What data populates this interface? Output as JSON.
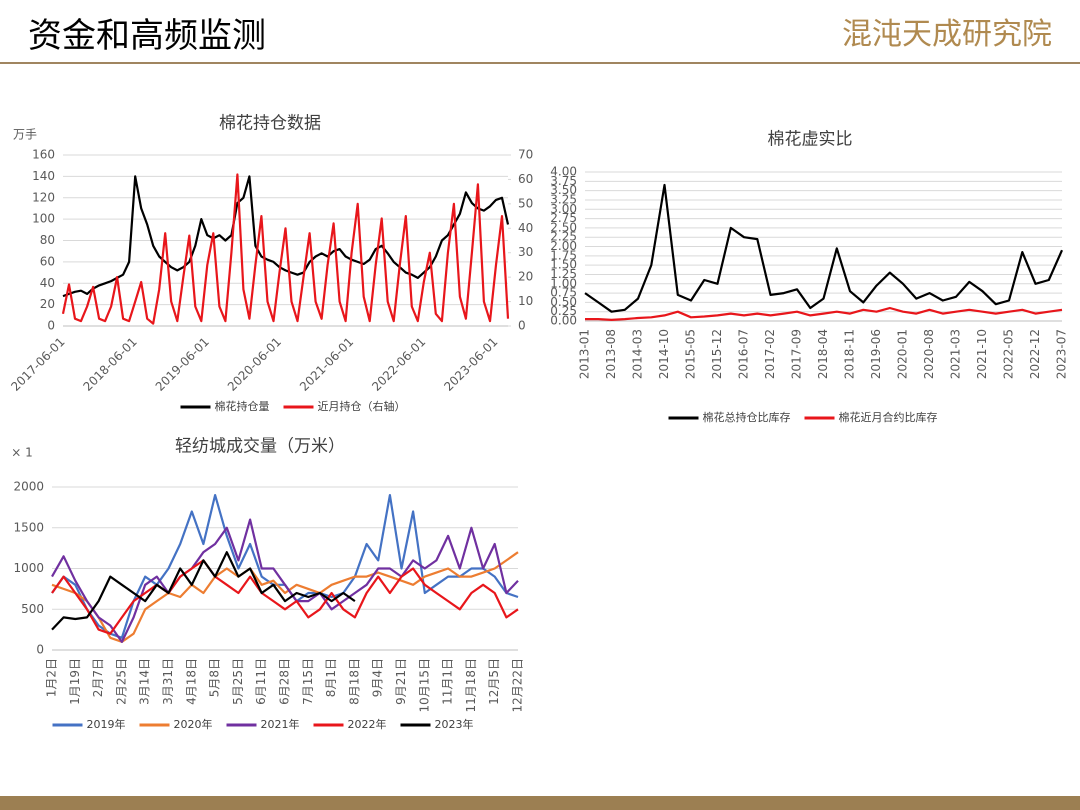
{
  "header": {
    "title": "资金和高频监测",
    "logo": "混沌天成研究院"
  },
  "chart_data": [
    {
      "type": "line",
      "title": "棉花持仓数据",
      "y_label": "万手",
      "categories": [
        "2017-06-01",
        null,
        null,
        null,
        null,
        null,
        null,
        null,
        null,
        null,
        null,
        null,
        "2018-06-01",
        null,
        null,
        null,
        null,
        null,
        null,
        null,
        null,
        null,
        null,
        null,
        "2019-06-01",
        null,
        null,
        null,
        null,
        null,
        null,
        null,
        null,
        null,
        null,
        null,
        "2020-06-01",
        null,
        null,
        null,
        null,
        null,
        null,
        null,
        null,
        null,
        null,
        null,
        "2021-06-01",
        null,
        null,
        null,
        null,
        null,
        null,
        null,
        null,
        null,
        null,
        null,
        "2022-06-01",
        null,
        null,
        null,
        null,
        null,
        null,
        null,
        null,
        null,
        null,
        null,
        "2023-06-01",
        null,
        null
      ],
      "series": [
        {
          "name": "棉花持仓量",
          "color": "#000000",
          "values": [
            28,
            30,
            32,
            33,
            30,
            35,
            38,
            40,
            42,
            45,
            48,
            60,
            140,
            110,
            95,
            75,
            65,
            60,
            55,
            52,
            55,
            60,
            75,
            100,
            85,
            82,
            85,
            80,
            85,
            115,
            120,
            140,
            75,
            65,
            62,
            60,
            55,
            52,
            50,
            48,
            50,
            60,
            65,
            68,
            65,
            70,
            72,
            65,
            62,
            60,
            58,
            62,
            72,
            75,
            68,
            60,
            55,
            50,
            48,
            45,
            50,
            55,
            65,
            80,
            85,
            95,
            105,
            125,
            115,
            110,
            108,
            112,
            118,
            120,
            95
          ]
        },
        {
          "name": "近月持仓（右轴）",
          "color": "#e8161b",
          "axis": "y2",
          "values": [
            5,
            17,
            3,
            2,
            8,
            16,
            3,
            2,
            8,
            20,
            3,
            2,
            10,
            18,
            3,
            1,
            15,
            38,
            10,
            2,
            20,
            37,
            8,
            2,
            25,
            38,
            8,
            2,
            30,
            62,
            15,
            3,
            25,
            45,
            10,
            2,
            22,
            40,
            10,
            2,
            20,
            38,
            10,
            3,
            25,
            42,
            10,
            2,
            30,
            50,
            12,
            2,
            25,
            44,
            10,
            2,
            25,
            45,
            8,
            2,
            18,
            30,
            5,
            2,
            30,
            50,
            12,
            3,
            30,
            58,
            10,
            2,
            25,
            45,
            3
          ]
        }
      ],
      "ylim": [
        0,
        160
      ],
      "yticks": [
        0,
        20,
        40,
        60,
        80,
        100,
        120,
        140,
        160
      ],
      "y2lim": [
        0,
        70
      ],
      "y2ticks": [
        0,
        10,
        20,
        30,
        40,
        50,
        60,
        70
      ],
      "grid": true,
      "legend": "bottom"
    },
    {
      "type": "line",
      "title": "棉花虚实比",
      "categories": [
        "2013-01",
        null,
        "2013-08",
        null,
        "2014-03",
        null,
        "2014-10",
        null,
        "2015-05",
        null,
        "2015-12",
        null,
        "2016-07",
        null,
        "2017-02",
        null,
        "2017-09",
        null,
        "2018-04",
        null,
        "2018-11",
        null,
        "2019-06",
        null,
        "2020-01",
        null,
        "2020-08",
        null,
        "2021-03",
        null,
        "2021-10",
        null,
        "2022-05",
        null,
        "2022-12",
        null,
        "2023-07"
      ],
      "series": [
        {
          "name": "棉花总持仓比库存",
          "color": "#000000",
          "values": [
            0.75,
            0.5,
            0.25,
            0.3,
            0.6,
            1.5,
            3.65,
            0.7,
            0.55,
            1.1,
            1.0,
            2.5,
            2.25,
            2.2,
            0.7,
            0.75,
            0.85,
            0.35,
            0.6,
            1.95,
            0.8,
            0.5,
            0.95,
            1.3,
            1.0,
            0.6,
            0.75,
            0.55,
            0.65,
            1.05,
            0.8,
            0.45,
            0.55,
            1.85,
            1.0,
            1.1,
            1.9
          ]
        },
        {
          "name": "棉花近月合约比库存",
          "color": "#e8161b",
          "values": [
            0.05,
            0.05,
            0.03,
            0.05,
            0.08,
            0.1,
            0.15,
            0.25,
            0.1,
            0.12,
            0.15,
            0.2,
            0.15,
            0.2,
            0.15,
            0.2,
            0.25,
            0.15,
            0.2,
            0.25,
            0.2,
            0.3,
            0.25,
            0.35,
            0.25,
            0.2,
            0.3,
            0.2,
            0.25,
            0.3,
            0.25,
            0.2,
            0.25,
            0.3,
            0.2,
            0.25,
            0.3
          ]
        }
      ],
      "ylim": [
        0,
        4
      ],
      "yticks": [
        {
          "value": 0,
          "label": "0.00"
        },
        {
          "value": 0.25,
          "label": "0.25"
        },
        {
          "value": 0.5,
          "label": "0.50"
        },
        {
          "value": 0.75,
          "label": "0.75"
        },
        {
          "value": 1,
          "label": "1.00"
        },
        {
          "value": 1.25,
          "label": "1.25"
        },
        {
          "value": 1.5,
          "label": "1.50"
        },
        {
          "value": 1.75,
          "label": "1.75"
        },
        {
          "value": 2,
          "label": "2.00"
        },
        {
          "value": 2.25,
          "label": "2.25"
        },
        {
          "value": 2.5,
          "label": "2.50"
        },
        {
          "value": 2.75,
          "label": "2.75"
        },
        {
          "value": 3,
          "label": "3.00"
        },
        {
          "value": 3.25,
          "label": "3.25"
        },
        {
          "value": 3.5,
          "label": "3.50"
        },
        {
          "value": 3.75,
          "label": "3.75"
        },
        {
          "value": 4,
          "label": "4.00"
        }
      ],
      "grid": true,
      "legend": "bottom"
    },
    {
      "type": "line",
      "title": "轻纺城成交量（万米）",
      "y_label": "× 1",
      "categories": [
        "1月2日",
        null,
        "1月19日",
        null,
        "2月7日",
        null,
        "2月25日",
        null,
        "3月14日",
        null,
        "3月31日",
        null,
        "4月18日",
        null,
        "5月8日",
        null,
        "5月25日",
        null,
        "6月11日",
        null,
        "6月28日",
        null,
        "7月15日",
        null,
        "8月1日",
        null,
        "8月18日",
        null,
        "9月4日",
        null,
        "9月21日",
        null,
        "10月15日",
        null,
        "11月1日",
        null,
        "11月18日",
        null,
        "12月5日",
        null,
        "12月22日"
      ],
      "series": [
        {
          "name": "2019年",
          "color": "#4472c4",
          "values": [
            700,
            900,
            800,
            500,
            300,
            200,
            150,
            600,
            900,
            800,
            1000,
            1300,
            1700,
            1300,
            1900,
            1400,
            1000,
            1300,
            900,
            800,
            800,
            600,
            700,
            700,
            650,
            700,
            900,
            1300,
            1100,
            1900,
            1000,
            1700,
            700,
            800,
            900,
            900,
            1000,
            1000,
            900,
            700,
            650
          ]
        },
        {
          "name": "2020年",
          "color": "#ed7d31",
          "values": [
            800,
            750,
            700,
            600,
            400,
            150,
            100,
            200,
            500,
            600,
            700,
            650,
            800,
            700,
            900,
            1000,
            900,
            1000,
            800,
            850,
            700,
            800,
            750,
            700,
            800,
            850,
            900,
            900,
            950,
            900,
            850,
            800,
            900,
            950,
            1000,
            900,
            900,
            950,
            1000,
            1100,
            1200
          ]
        },
        {
          "name": "2021年",
          "color": "#7030a0",
          "values": [
            900,
            1150,
            850,
            600,
            400,
            300,
            100,
            400,
            800,
            900,
            700,
            900,
            1000,
            1200,
            1300,
            1500,
            1100,
            1600,
            1000,
            1000,
            800,
            600,
            600,
            700,
            500,
            600,
            700,
            800,
            1000,
            1000,
            900,
            1100,
            1000,
            1100,
            1400,
            1000,
            1500,
            1000,
            1300,
            700,
            850
          ]
        },
        {
          "name": "2022年",
          "color": "#e8161b",
          "values": [
            700,
            900,
            700,
            500,
            250,
            200,
            400,
            600,
            700,
            800,
            700,
            900,
            1000,
            1100,
            900,
            800,
            700,
            900,
            700,
            600,
            500,
            600,
            400,
            500,
            700,
            500,
            400,
            700,
            900,
            700,
            900,
            1000,
            800,
            700,
            600,
            500,
            700,
            800,
            700,
            400,
            500
          ]
        },
        {
          "name": "2023年",
          "color": "#000000",
          "values": [
            250,
            400,
            380,
            400,
            600,
            900,
            800,
            700,
            600,
            800,
            700,
            1000,
            800,
            1100,
            900,
            1200,
            900,
            1000,
            700,
            800,
            600,
            700,
            650,
            700,
            600,
            700,
            600,
            null,
            null,
            null,
            null,
            null,
            null,
            null,
            null,
            null,
            null,
            null,
            null,
            null,
            null
          ]
        }
      ],
      "ylim": [
        0,
        2000
      ],
      "yticks": [
        0,
        500,
        1000,
        1500,
        2000
      ],
      "grid": true,
      "legend": "bottom"
    }
  ]
}
